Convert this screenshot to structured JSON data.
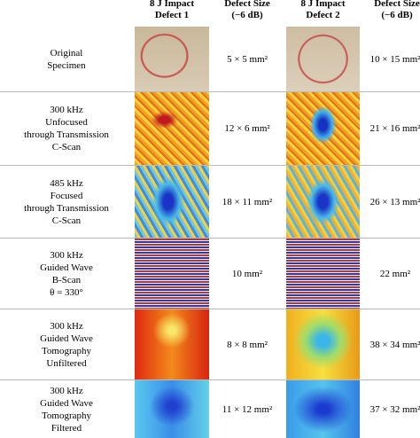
{
  "header": [
    "",
    "8 J Impact Defect 1",
    "Defect Size (−6 dB)",
    "8 J Impact Defect 2",
    "Defect Size (−6 dB)"
  ],
  "header_lines": [
    [],
    [
      "8 J Impact",
      "Defect 1"
    ],
    [
      "Defect Size",
      "(−6 dB)"
    ],
    [
      "8 J Impact",
      "Defect 2"
    ],
    [
      "Defect Size",
      "(−6 dB)"
    ]
  ],
  "rows": [
    {
      "label": [
        "Original",
        "Specimen"
      ],
      "size1": "5 × 5 mm²",
      "size2": "10 × 15 mm²"
    },
    {
      "label": [
        "300 kHz",
        "Unfocused",
        "through Transmission",
        "C-Scan"
      ],
      "size1": "12 × 6 mm²",
      "size2": "21 × 16 mm²"
    },
    {
      "label": [
        "485 kHz",
        "Focused",
        "through Transmission",
        "C-Scan"
      ],
      "size1": "18 × 11 mm²",
      "size2": "26 × 13 mm²"
    },
    {
      "label": [
        "300 kHz",
        "Guided Wave",
        "B-Scan",
        "θ = 330°"
      ],
      "size1": "10 mm²",
      "size2": "22 mm²"
    },
    {
      "label": [
        "300 kHz",
        "Guided Wave",
        "Tomography",
        "Unfiltered"
      ],
      "size1": "8 × 8 mm²",
      "size2": "38 × 34 mm²"
    },
    {
      "label": [
        "300 kHz",
        "Guided Wave",
        "Tomography",
        "Filtered"
      ],
      "size1": "11 × 12 mm²",
      "size2": "37 × 32 mm²"
    }
  ]
}
